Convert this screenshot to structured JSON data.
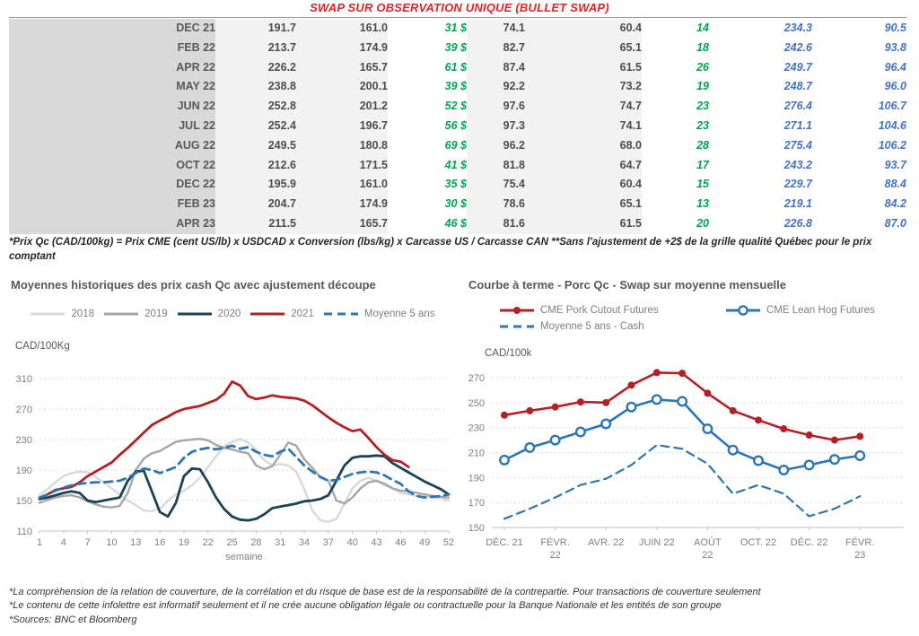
{
  "title": "SWAP SUR OBSERVATION UNIQUE (BULLET SWAP)",
  "table": {
    "rows": [
      [
        "DEC 21",
        "191.7",
        "161.0",
        "31 $",
        "74.1",
        "60.4",
        "14",
        "234.3",
        "90.5"
      ],
      [
        "FEB 22",
        "213.7",
        "174.9",
        "39 $",
        "82.7",
        "65.1",
        "18",
        "242.6",
        "93.8"
      ],
      [
        "APR 22",
        "226.2",
        "165.7",
        "61 $",
        "87.4",
        "61.5",
        "26",
        "249.7",
        "96.4"
      ],
      [
        "MAY 22",
        "238.8",
        "200.1",
        "39 $",
        "92.2",
        "73.2",
        "19",
        "248.7",
        "96.0"
      ],
      [
        "JUN 22",
        "252.8",
        "201.2",
        "52 $",
        "97.6",
        "74.7",
        "23",
        "276.4",
        "106.7"
      ],
      [
        "JUL 22",
        "252.4",
        "196.7",
        "56 $",
        "97.3",
        "74.1",
        "23",
        "271.1",
        "104.6"
      ],
      [
        "AUG 22",
        "249.5",
        "180.8",
        "69 $",
        "96.2",
        "68.0",
        "28",
        "275.4",
        "106.2"
      ],
      [
        "OCT 22",
        "212.6",
        "171.5",
        "41 $",
        "81.8",
        "64.7",
        "17",
        "243.2",
        "93.7"
      ],
      [
        "DEC 22",
        "195.9",
        "161.0",
        "35 $",
        "75.4",
        "60.4",
        "15",
        "229.7",
        "88.4"
      ],
      [
        "FEB 23",
        "204.7",
        "174.9",
        "30 $",
        "78.6",
        "65.1",
        "13",
        "219.1",
        "84.2"
      ],
      [
        "APR 23",
        "211.5",
        "165.7",
        "46 $",
        "81.6",
        "61.5",
        "20",
        "226.8",
        "87.0"
      ]
    ]
  },
  "table_note": "*Prix Qc (CAD/100kg) = Prix CME (cent US/lb) x USDCAD x Conversion (lbs/kg) x Carcasse US / Carcasse CAN **Sans l'ajustement de +2$ de la grille qualité Québec pour le prix comptant",
  "colors": {
    "title_red": "#e32227",
    "green": "#00a550",
    "blue_table": "#4472c4",
    "gray_2018": "#d9d9d9",
    "gray_2019": "#a6a6a6",
    "navy_2020": "#1c4257",
    "red_2021": "#b42025",
    "blue_line": "#2e75b6"
  },
  "chart_data": [
    {
      "type": "line",
      "title": "Moyennes historiques des prix cash Qc avec ajustement découpe",
      "ylabel": "CAD/100Kg",
      "xlabel": "semaine",
      "ylim": [
        110,
        310
      ],
      "yticks": [
        110,
        150,
        190,
        230,
        270,
        310
      ],
      "xlim": [
        1,
        52
      ],
      "xticks": [
        1,
        4,
        7,
        10,
        13,
        16,
        19,
        22,
        25,
        28,
        31,
        34,
        37,
        40,
        43,
        46,
        49,
        52
      ],
      "grid": true,
      "legend_position": "top",
      "x": [
        1,
        2,
        3,
        4,
        5,
        6,
        7,
        8,
        9,
        10,
        11,
        12,
        13,
        14,
        15,
        16,
        17,
        18,
        19,
        20,
        21,
        22,
        23,
        24,
        25,
        26,
        27,
        28,
        29,
        30,
        31,
        32,
        33,
        34,
        35,
        36,
        37,
        38,
        39,
        40,
        41,
        42,
        43,
        44,
        45,
        46,
        47,
        48,
        49,
        50,
        51,
        52
      ],
      "series": [
        {
          "name": "2018",
          "color": "#d9d9d9",
          "dash": false,
          "width": 2.4,
          "values": [
            158,
            165,
            174,
            182,
            186,
            188,
            187,
            181,
            174,
            166,
            158,
            150,
            144,
            137,
            136,
            139,
            150,
            158,
            163,
            170,
            180,
            194,
            208,
            221,
            227,
            231,
            226,
            216,
            203,
            196,
            198,
            196,
            188,
            165,
            137,
            124,
            122,
            126,
            146,
            166,
            176,
            180,
            176,
            170,
            166,
            160,
            158,
            156,
            155,
            154,
            153,
            150
          ]
        },
        {
          "name": "2019",
          "color": "#a6a6a6",
          "dash": false,
          "width": 2.4,
          "values": [
            147,
            151,
            154,
            156,
            157,
            154,
            149,
            145,
            142,
            141,
            143,
            160,
            190,
            205,
            212,
            215,
            221,
            227,
            229,
            230,
            231,
            229,
            223,
            219,
            217,
            214,
            212,
            196,
            191,
            195,
            210,
            226,
            222,
            204,
            193,
            181,
            176,
            150,
            146,
            154,
            166,
            174,
            176,
            172,
            166,
            163,
            162,
            160,
            158,
            156,
            155,
            154
          ]
        },
        {
          "name": "2020",
          "color": "#1c4257",
          "dash": false,
          "width": 2.8,
          "values": [
            152,
            154,
            157,
            160,
            162,
            160,
            150,
            148,
            150,
            152,
            154,
            176,
            188,
            189,
            162,
            135,
            129,
            147,
            182,
            192,
            191,
            174,
            154,
            139,
            129,
            125,
            124,
            126,
            132,
            140,
            142,
            144,
            146,
            149,
            150,
            152,
            157,
            176,
            196,
            206,
            208,
            208,
            209,
            208,
            199,
            193,
            187,
            181,
            175,
            170,
            165,
            158
          ]
        },
        {
          "name": "2021",
          "color": "#b42025",
          "dash": false,
          "width": 2.8,
          "values": [
            null,
            158,
            164,
            166,
            168,
            174,
            182,
            188,
            194,
            200,
            210,
            219,
            229,
            239,
            249,
            255,
            260,
            266,
            270,
            272,
            274,
            278,
            282,
            290,
            306,
            301,
            287,
            283,
            285,
            288,
            286,
            285,
            284,
            281,
            275,
            267,
            259,
            252,
            246,
            241,
            243,
            232,
            220,
            210,
            203,
            201,
            194,
            null,
            null,
            null,
            null,
            null
          ]
        },
        {
          "name": "Moyenne 5 ans",
          "color": "#2e75b6",
          "dash": true,
          "width": 2.8,
          "values": [
            154,
            158,
            163,
            167,
            170,
            172,
            173,
            174,
            174,
            175,
            176,
            180,
            186,
            192,
            190,
            186,
            190,
            194,
            206,
            214,
            217,
            219,
            217,
            219,
            222,
            218,
            220,
            214,
            210,
            208,
            214,
            218,
            207,
            196,
            188,
            181,
            176,
            177,
            181,
            185,
            187,
            188,
            187,
            183,
            177,
            172,
            162,
            156,
            154,
            155,
            156,
            158
          ]
        }
      ]
    },
    {
      "type": "line",
      "title": "Courbe à terme - Porc Qc - Swap sur moyenne mensuelle",
      "ylabel": "CAD/100k",
      "xlabel": "",
      "ylim": [
        150,
        270
      ],
      "yticks": [
        150,
        170,
        190,
        210,
        230,
        250,
        270
      ],
      "grid": true,
      "legend_position": "top",
      "categories": [
        "DÉC. 21",
        "JANV. 22",
        "FÉVR. 22",
        "MARS 22",
        "AVR. 22",
        "MAI 22",
        "JUIN 22",
        "JUIL. 22",
        "AOÛT 22",
        "SEPT. 22",
        "OCT. 22",
        "NOV. 22",
        "DÉC. 22",
        "JANV. 23",
        "FÉVR. 23"
      ],
      "xtick_labels": [
        {
          "pos": 0,
          "line1": "DÉC. 21",
          "line2": ""
        },
        {
          "pos": 2,
          "line1": "FÉVR.",
          "line2": "22"
        },
        {
          "pos": 4,
          "line1": "AVR. 22",
          "line2": ""
        },
        {
          "pos": 6,
          "line1": "JUIN 22",
          "line2": ""
        },
        {
          "pos": 8,
          "line1": "AOÛT",
          "line2": "22"
        },
        {
          "pos": 10,
          "line1": "OCT. 22",
          "line2": ""
        },
        {
          "pos": 12,
          "line1": "DÉC. 22",
          "line2": ""
        },
        {
          "pos": 14,
          "line1": "FÉVR.",
          "line2": "23"
        }
      ],
      "series": [
        {
          "name": "CME Pork Cutout Futures",
          "color": "#b42025",
          "dash": false,
          "width": 2.6,
          "marker": "filled",
          "values": [
            240,
            243.5,
            246.5,
            250.5,
            250,
            264,
            274,
            273.5,
            257.5,
            243.5,
            236,
            229,
            224,
            220,
            223
          ]
        },
        {
          "name": "CME Lean Hog Futures",
          "color": "#2e75b6",
          "dash": false,
          "width": 2.6,
          "marker": "open",
          "values": [
            204,
            214,
            220,
            226.5,
            233,
            246.5,
            252.5,
            251,
            229,
            212,
            203.5,
            196,
            200,
            204.5,
            207.5
          ]
        },
        {
          "name": "Moyenne 5 ans - Cash",
          "color": "#2e75b6",
          "dash": true,
          "width": 2.2,
          "marker": "none",
          "values": [
            157,
            165,
            174,
            184,
            189,
            200,
            216,
            213,
            201,
            177,
            184,
            177,
            159,
            165,
            175
          ]
        }
      ]
    }
  ],
  "footnotes": [
    "*La compréhension de la relation de couverture, de la corrélation et du risque de base est de la responsabilité de la contrepartie. Pour transactions de couverture seulement",
    "*Le contenu de cette infolettre est informatif seulement et il ne crée aucune obligation légale ou contractuelle pour la Banque Nationale et les entités de son groupe",
    "*Sources: BNC et Bloomberg"
  ]
}
